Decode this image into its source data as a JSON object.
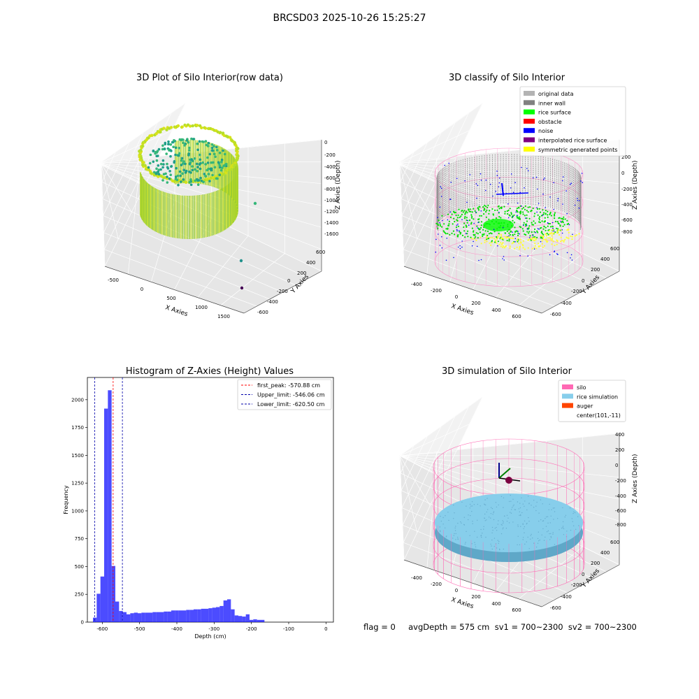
{
  "title": "BRCSD03 2025-10-26 15:25:27",
  "footer": {
    "text": "flag = 0     avgDepth = 575 cm  sv1 = 700~2300  sv2 = 700~2300"
  },
  "chart_data": [
    {
      "type": "scatter",
      "title": "3D Plot of Silo Interior(row data)",
      "xlabel": "X Axies",
      "ylabel": "Y Axies",
      "zlabel": "Z Axies (Depth)",
      "x_ticks": [
        "-500",
        "0",
        "500",
        "1000",
        "1500"
      ],
      "y_ticks": [
        "600",
        "400",
        "200",
        "0",
        "-200",
        "-400",
        "-600"
      ],
      "z_ticks": [
        "0",
        "-200",
        "-400",
        "-600",
        "-800",
        "-1000",
        "-1200",
        "-1400",
        "-1600"
      ],
      "colormap": "viridis",
      "outliers": [
        {
          "x": 1100,
          "y": -200,
          "z": -1050
        },
        {
          "x": 1350,
          "y": -500,
          "z": -1500
        },
        {
          "x": 1550,
          "y": -550,
          "z": -1600
        }
      ]
    },
    {
      "type": "scatter",
      "title": "3D classify of Silo Interior",
      "xlabel": "X Axies",
      "ylabel": "Y Axies",
      "zlabel": "Z Axies (Depth)",
      "x_ticks": [
        "-400",
        "-200",
        "0",
        "200",
        "400",
        "600"
      ],
      "y_ticks": [
        "600",
        "400",
        "200",
        "0",
        "-200",
        "-400",
        "-600"
      ],
      "z_ticks": [
        "200",
        "0",
        "-200",
        "-400",
        "-600",
        "-800"
      ],
      "legend": [
        {
          "label": "original data",
          "color": "#b3b3b3"
        },
        {
          "label": "inner wall",
          "color": "#808080"
        },
        {
          "label": "rice surface",
          "color": "#00ff00"
        },
        {
          "label": "obstacle",
          "color": "#ff0000"
        },
        {
          "label": "noise",
          "color": "#0000ff"
        },
        {
          "label": "interpolated rice surface",
          "color": "#800080"
        },
        {
          "label": "symmetric generated points",
          "color": "#ffff00"
        }
      ],
      "legend_position": "top-right"
    },
    {
      "type": "bar",
      "title": "Histogram of Z-Axies (Height) Values",
      "xlabel": "Depth (cm)",
      "ylabel": "Frequency",
      "xlim": [
        -640,
        20
      ],
      "ylim": [
        0,
        2200
      ],
      "x_ticks": [
        -600,
        -500,
        -400,
        -300,
        -200,
        -100,
        0
      ],
      "y_ticks": [
        0,
        250,
        500,
        750,
        1000,
        1250,
        1500,
        1750,
        2000
      ],
      "bin_start": -625,
      "bin_width": 10,
      "bar_color": "#0000ff",
      "values": [
        40,
        255,
        410,
        1920,
        2085,
        505,
        185,
        100,
        90,
        70,
        80,
        85,
        80,
        85,
        85,
        85,
        90,
        90,
        90,
        95,
        95,
        105,
        105,
        105,
        105,
        110,
        110,
        115,
        115,
        120,
        120,
        125,
        130,
        135,
        145,
        195,
        205,
        115,
        60,
        55,
        50,
        70,
        20,
        25,
        20,
        20
      ],
      "lines": [
        {
          "label": "first_peak: -570.88 cm",
          "value": -570.88,
          "color": "#ff0000"
        },
        {
          "label": "Upper_limit: -546.06 cm",
          "value": -546.06,
          "color": "#0000aa"
        },
        {
          "label": "Lower_limit: -620.50 cm",
          "value": -620.5,
          "color": "#0000aa"
        }
      ],
      "legend_position": "top-right"
    },
    {
      "type": "scatter",
      "title": "3D simulation of Silo Interior",
      "xlabel": "X Axies",
      "ylabel": "Y Axies",
      "zlabel": "Z Axies (Depth)",
      "x_ticks": [
        "-400",
        "-200",
        "0",
        "200",
        "400",
        "600"
      ],
      "y_ticks": [
        "600",
        "400",
        "200",
        "0",
        "-200",
        "-400",
        "-600"
      ],
      "z_ticks": [
        "400",
        "200",
        "0",
        "-200",
        "-400",
        "-600",
        "-800"
      ],
      "legend": [
        {
          "label": "silo",
          "color": "#ff69b4"
        },
        {
          "label": "rice simulation",
          "color": "#87ceeb"
        },
        {
          "label": "auger",
          "color": "#ff4500"
        },
        {
          "label": "center(101,-11)",
          "color": "none"
        }
      ],
      "legend_position": "top-right"
    }
  ]
}
